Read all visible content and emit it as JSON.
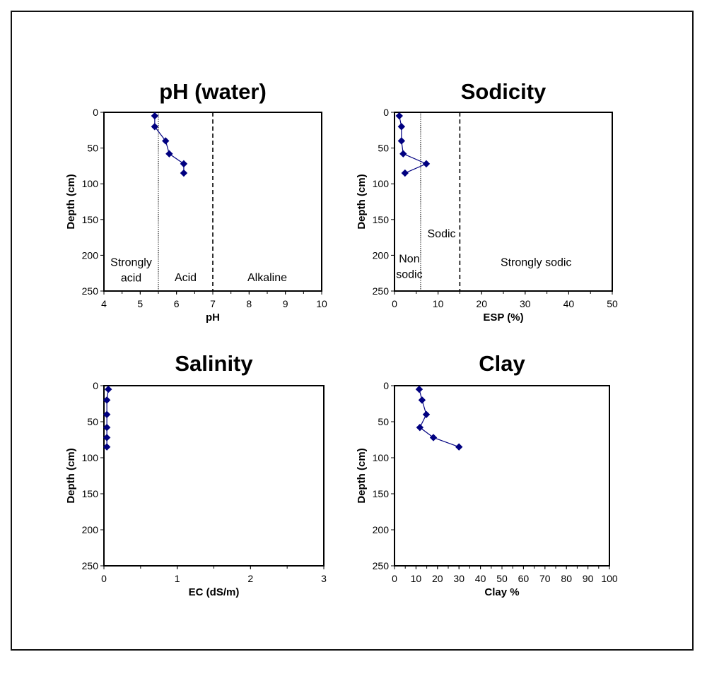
{
  "chart_data": [
    {
      "id": "ph",
      "type": "line",
      "title": "pH (water)",
      "xlabel": "pH",
      "ylabel": "Depth (cm)",
      "xlim": [
        4,
        10
      ],
      "ylim": [
        0,
        250
      ],
      "y_inverted": true,
      "xticks": [
        4,
        5,
        6,
        7,
        8,
        9,
        10
      ],
      "x_minor_step": 0.5,
      "yticks": [
        0,
        50,
        100,
        150,
        200,
        250
      ],
      "grid": false,
      "marker": "diamond",
      "color": "#000080",
      "series": [
        {
          "name": "pH",
          "points": [
            [
              5.4,
              5
            ],
            [
              5.4,
              20
            ],
            [
              5.7,
              40
            ],
            [
              5.8,
              58
            ],
            [
              6.2,
              72
            ],
            [
              6.2,
              85
            ]
          ]
        }
      ],
      "reference_lines": [
        {
          "x": 5.5,
          "style": "dotted"
        },
        {
          "x": 7,
          "style": "dashed"
        }
      ],
      "zone_labels": [
        {
          "lines": [
            "Strongly",
            "acid"
          ],
          "x": 4.75,
          "y": 215
        },
        {
          "lines": [
            "Acid"
          ],
          "x": 6.25,
          "y": 236
        },
        {
          "lines": [
            "Alkaline"
          ],
          "x": 8.5,
          "y": 236
        }
      ]
    },
    {
      "id": "sodicity",
      "type": "line",
      "title": "Sodicity",
      "xlabel": "ESP (%)",
      "ylabel": "Depth (cm)",
      "xlim": [
        0,
        50
      ],
      "ylim": [
        0,
        250
      ],
      "y_inverted": true,
      "xticks": [
        0,
        10,
        20,
        30,
        40,
        50
      ],
      "x_minor_step": 5,
      "yticks": [
        0,
        50,
        100,
        150,
        200,
        250
      ],
      "grid": false,
      "marker": "diamond",
      "color": "#000080",
      "series": [
        {
          "name": "ESP",
          "points": [
            [
              1.1,
              5
            ],
            [
              1.6,
              20
            ],
            [
              1.6,
              40
            ],
            [
              2.0,
              58
            ],
            [
              7.3,
              72
            ],
            [
              2.4,
              85
            ]
          ]
        }
      ],
      "reference_lines": [
        {
          "x": 6,
          "style": "dotted"
        },
        {
          "x": 15,
          "style": "dashed"
        }
      ],
      "zone_labels": [
        {
          "lines": [
            "Non",
            "sodic"
          ],
          "x": 3.4,
          "y": 210
        },
        {
          "lines": [
            "Sodic"
          ],
          "x": 10.8,
          "y": 175
        },
        {
          "lines": [
            "Strongly sodic"
          ],
          "x": 32.5,
          "y": 215
        }
      ]
    },
    {
      "id": "salinity",
      "type": "line",
      "title": "Salinity",
      "xlabel": "EC (dS/m)",
      "ylabel": "Depth (cm)",
      "xlim": [
        0,
        3
      ],
      "ylim": [
        0,
        250
      ],
      "y_inverted": true,
      "xticks": [
        0,
        1,
        2,
        3
      ],
      "x_minor_step": 0.5,
      "yticks": [
        0,
        50,
        100,
        150,
        200,
        250
      ],
      "grid": false,
      "marker": "diamond",
      "color": "#000080",
      "series": [
        {
          "name": "EC",
          "points": [
            [
              0.06,
              5
            ],
            [
              0.04,
              20
            ],
            [
              0.04,
              40
            ],
            [
              0.04,
              58
            ],
            [
              0.04,
              72
            ],
            [
              0.04,
              85
            ]
          ]
        }
      ],
      "reference_lines": [],
      "zone_labels": []
    },
    {
      "id": "clay",
      "type": "line",
      "title": "Clay",
      "xlabel": "Clay %",
      "ylabel": "Depth (cm)",
      "xlim": [
        0,
        100
      ],
      "ylim": [
        0,
        250
      ],
      "y_inverted": true,
      "xticks": [
        0,
        10,
        20,
        30,
        40,
        50,
        60,
        70,
        80,
        90,
        100
      ],
      "x_minor_step": 5,
      "yticks": [
        0,
        50,
        100,
        150,
        200,
        250
      ],
      "grid": false,
      "marker": "diamond",
      "color": "#000080",
      "series": [
        {
          "name": "Clay",
          "points": [
            [
              11.5,
              5
            ],
            [
              12.8,
              20
            ],
            [
              14.8,
              40
            ],
            [
              11.8,
              58
            ],
            [
              18.1,
              72
            ],
            [
              30,
              85
            ]
          ]
        }
      ],
      "reference_lines": [],
      "zone_labels": []
    }
  ]
}
